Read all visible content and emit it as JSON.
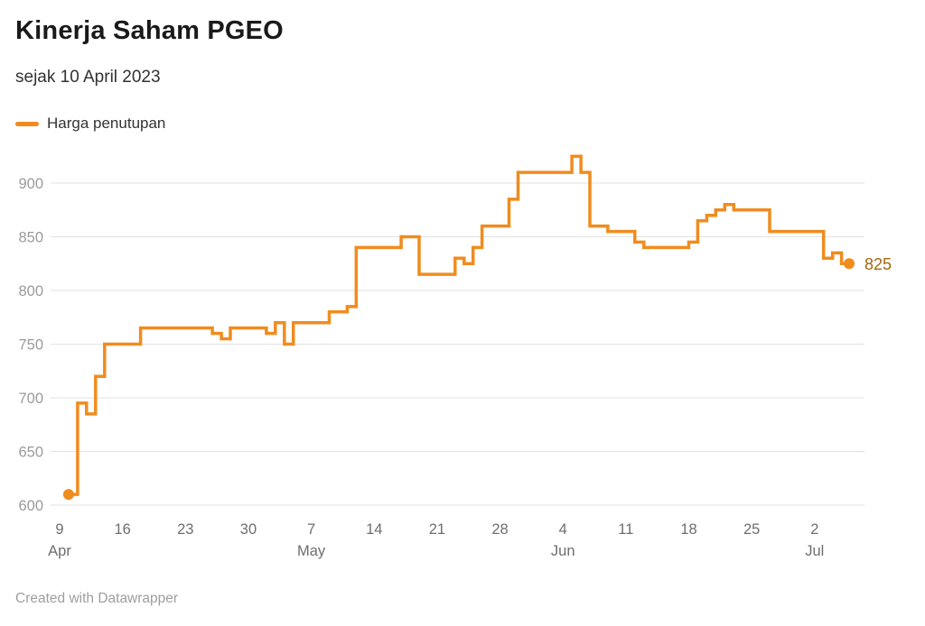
{
  "header": {
    "title": "Kinerja Saham PGEO",
    "subtitle": "sejak 10 April 2023"
  },
  "legend": {
    "label": "Harga penutupan",
    "color": "#f08c1e"
  },
  "chart_data": {
    "type": "line",
    "step": true,
    "title": "Kinerja Saham PGEO",
    "subtitle": "sejak 10 April 2023",
    "ylabel": "",
    "xlabel": "",
    "ylim": [
      600,
      930
    ],
    "grid": true,
    "legend_position": "top-left",
    "line_color": "#f08c1e",
    "grid_color": "#e2e2e2",
    "y_tick_color": "#9b9b9b",
    "x_tick_color": "#6e6e6e",
    "y_ticks": [
      600,
      650,
      700,
      750,
      800,
      850,
      900
    ],
    "x_ticks": [
      {
        "label": "9",
        "month": "Apr",
        "date": "2023-04-09"
      },
      {
        "label": "16",
        "date": "2023-04-16"
      },
      {
        "label": "23",
        "date": "2023-04-23"
      },
      {
        "label": "30",
        "date": "2023-04-30"
      },
      {
        "label": "7",
        "month": "May",
        "date": "2023-05-07"
      },
      {
        "label": "14",
        "date": "2023-05-14"
      },
      {
        "label": "21",
        "date": "2023-05-21"
      },
      {
        "label": "28",
        "date": "2023-05-28"
      },
      {
        "label": "4",
        "month": "Jun",
        "date": "2023-06-04"
      },
      {
        "label": "11",
        "date": "2023-06-11"
      },
      {
        "label": "18",
        "date": "2023-06-18"
      },
      {
        "label": "25",
        "date": "2023-06-25"
      },
      {
        "label": "2",
        "month": "Jul",
        "date": "2023-07-02"
      }
    ],
    "series": [
      {
        "name": "Harga penutupan",
        "color": "#f08c1e",
        "points": [
          [
            "2023-04-10",
            610
          ],
          [
            "2023-04-11",
            695
          ],
          [
            "2023-04-12",
            685
          ],
          [
            "2023-04-13",
            720
          ],
          [
            "2023-04-14",
            750
          ],
          [
            "2023-04-18",
            765
          ],
          [
            "2023-04-26",
            760
          ],
          [
            "2023-04-27",
            755
          ],
          [
            "2023-04-28",
            765
          ],
          [
            "2023-05-02",
            760
          ],
          [
            "2023-05-03",
            770
          ],
          [
            "2023-05-04",
            750
          ],
          [
            "2023-05-05",
            770
          ],
          [
            "2023-05-09",
            780
          ],
          [
            "2023-05-11",
            785
          ],
          [
            "2023-05-12",
            840
          ],
          [
            "2023-05-17",
            850
          ],
          [
            "2023-05-19",
            815
          ],
          [
            "2023-05-23",
            830
          ],
          [
            "2023-05-24",
            825
          ],
          [
            "2023-05-25",
            840
          ],
          [
            "2023-05-26",
            860
          ],
          [
            "2023-05-29",
            885
          ],
          [
            "2023-05-30",
            910
          ],
          [
            "2023-06-05",
            925
          ],
          [
            "2023-06-06",
            910
          ],
          [
            "2023-06-07",
            860
          ],
          [
            "2023-06-09",
            855
          ],
          [
            "2023-06-12",
            845
          ],
          [
            "2023-06-13",
            840
          ],
          [
            "2023-06-18",
            845
          ],
          [
            "2023-06-19",
            865
          ],
          [
            "2023-06-20",
            870
          ],
          [
            "2023-06-21",
            875
          ],
          [
            "2023-06-22",
            880
          ],
          [
            "2023-06-23",
            875
          ],
          [
            "2023-06-27",
            855
          ],
          [
            "2023-07-03",
            830
          ],
          [
            "2023-07-04",
            835
          ],
          [
            "2023-07-05",
            825
          ]
        ]
      }
    ],
    "end_label": {
      "text": "825",
      "color": "#a5660f"
    }
  },
  "footer": {
    "credit": "Created with Datawrapper"
  }
}
